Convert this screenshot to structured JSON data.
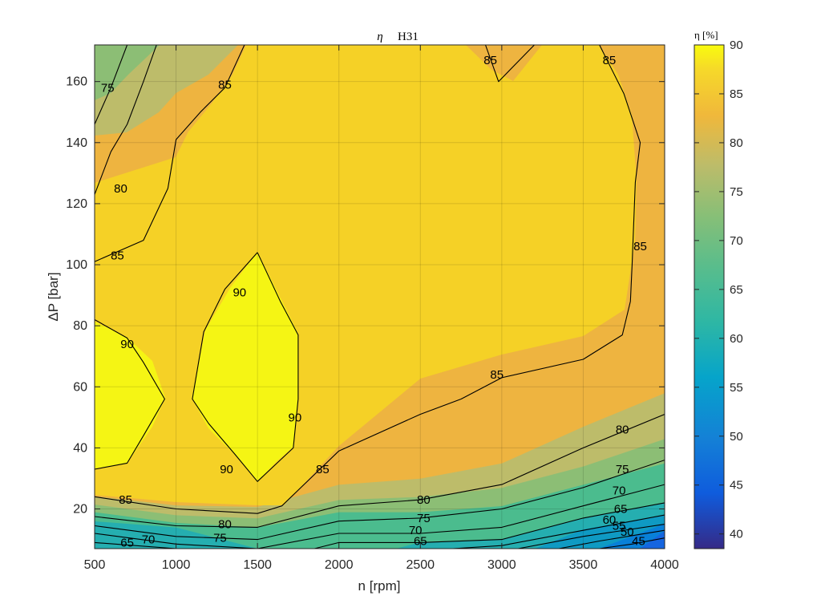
{
  "chart_data": {
    "type": "contour",
    "title": "H31",
    "title_symbol": "η",
    "xlabel": "n [rpm]",
    "ylabel": "ΔP [bar]",
    "xlim": [
      500,
      4000
    ],
    "ylim": [
      7,
      172
    ],
    "xticks": [
      500,
      1000,
      1500,
      2000,
      2500,
      3000,
      3500,
      4000
    ],
    "yticks": [
      20,
      40,
      60,
      80,
      100,
      120,
      140,
      160
    ],
    "grid": true,
    "colorbar": {
      "label": "η [%]",
      "range": [
        38.5,
        90
      ],
      "ticks": [
        40,
        45,
        50,
        55,
        60,
        65,
        70,
        75,
        80,
        85,
        90
      ],
      "colormap": "parula"
    },
    "levels": [
      45,
      50,
      55,
      60,
      65,
      70,
      75,
      80,
      85,
      90
    ],
    "contours": [
      {
        "level": 90,
        "points": [
          [
            500,
            82
          ],
          [
            700,
            76
          ],
          [
            800,
            68
          ],
          [
            930,
            56
          ],
          [
            800,
            44
          ],
          [
            700,
            35
          ],
          [
            500,
            33
          ]
        ]
      },
      {
        "level": 90,
        "points": [
          [
            1500,
            104
          ],
          [
            1640,
            88
          ],
          [
            1750,
            77
          ],
          [
            1750,
            56
          ],
          [
            1720,
            40
          ],
          [
            1620,
            35
          ],
          [
            1500,
            29
          ],
          [
            1360,
            38
          ],
          [
            1200,
            48
          ],
          [
            1100,
            56
          ],
          [
            1170,
            78
          ],
          [
            1300,
            92
          ],
          [
            1500,
            104
          ]
        ]
      },
      {
        "level": 85,
        "points": [
          [
            500,
            101
          ],
          [
            800,
            108
          ],
          [
            950,
            125
          ],
          [
            1000,
            141
          ],
          [
            1150,
            150
          ],
          [
            1300,
            158
          ],
          [
            1420,
            172
          ]
        ]
      },
      {
        "level": 85,
        "points": [
          [
            2900,
            172
          ],
          [
            2980,
            160
          ],
          [
            3200,
            172
          ]
        ]
      },
      {
        "level": 85,
        "points": [
          [
            3600,
            172
          ],
          [
            3750,
            156
          ],
          [
            3850,
            140
          ],
          [
            3820,
            127
          ],
          [
            3800,
            100
          ],
          [
            3790,
            88
          ],
          [
            3740,
            77
          ],
          [
            3500,
            69
          ],
          [
            3000,
            63
          ],
          [
            2750,
            56
          ],
          [
            2500,
            51
          ],
          [
            2000,
            39
          ],
          [
            1650,
            21
          ],
          [
            1500,
            18.5
          ],
          [
            1000,
            20
          ],
          [
            500,
            24
          ]
        ]
      },
      {
        "level": 80,
        "points": [
          [
            500,
            123
          ],
          [
            600,
            137
          ],
          [
            700,
            146
          ],
          [
            800,
            160
          ],
          [
            880,
            172
          ]
        ]
      },
      {
        "level": 80,
        "points": [
          [
            500,
            17.5
          ],
          [
            1000,
            14.5
          ],
          [
            1500,
            14
          ],
          [
            2000,
            21
          ],
          [
            2500,
            23
          ],
          [
            3000,
            28
          ],
          [
            3500,
            40
          ],
          [
            4000,
            51
          ]
        ]
      },
      {
        "level": 75,
        "points": [
          [
            500,
            146
          ],
          [
            600,
            158
          ],
          [
            700,
            172
          ]
        ]
      },
      {
        "level": 75,
        "points": [
          [
            500,
            14.5
          ],
          [
            1000,
            11
          ],
          [
            1500,
            10
          ],
          [
            2000,
            16
          ],
          [
            2500,
            17
          ],
          [
            3000,
            20
          ],
          [
            3500,
            27
          ],
          [
            4000,
            36
          ]
        ]
      },
      {
        "level": 70,
        "points": [
          [
            500,
            12
          ],
          [
            1000,
            8.5
          ],
          [
            1500,
            7
          ],
          [
            2000,
            12
          ],
          [
            2500,
            12
          ],
          [
            3000,
            14
          ],
          [
            3500,
            21
          ],
          [
            4000,
            28
          ]
        ]
      },
      {
        "level": 65,
        "points": [
          [
            500,
            9
          ],
          [
            1000,
            7
          ]
        ]
      },
      {
        "level": 65,
        "points": [
          [
            1850,
            7
          ],
          [
            2000,
            9
          ],
          [
            2500,
            9
          ],
          [
            3000,
            10
          ],
          [
            3500,
            17
          ],
          [
            4000,
            22
          ]
        ]
      },
      {
        "level": 60,
        "points": [
          [
            2700,
            7
          ],
          [
            3000,
            8
          ],
          [
            3500,
            13
          ],
          [
            4000,
            18
          ]
        ]
      },
      {
        "level": 55,
        "points": [
          [
            3100,
            7
          ],
          [
            3500,
            11
          ],
          [
            4000,
            15
          ]
        ]
      },
      {
        "level": 50,
        "points": [
          [
            3350,
            7
          ],
          [
            3600,
            9.5
          ],
          [
            4000,
            13
          ]
        ]
      },
      {
        "level": 45,
        "points": [
          [
            3600,
            7
          ],
          [
            3800,
            8.5
          ],
          [
            4000,
            10.5
          ]
        ]
      }
    ],
    "contour_labels": [
      {
        "text": "75",
        "at": [
          580,
          158
        ]
      },
      {
        "text": "80",
        "at": [
          660,
          125
        ]
      },
      {
        "text": "85",
        "at": [
          640,
          103
        ]
      },
      {
        "text": "85",
        "at": [
          1300,
          159
        ]
      },
      {
        "text": "90",
        "at": [
          700,
          74
        ]
      },
      {
        "text": "90",
        "at": [
          1390,
          91
        ]
      },
      {
        "text": "90",
        "at": [
          1730,
          50
        ]
      },
      {
        "text": "90",
        "at": [
          1310,
          33
        ]
      },
      {
        "text": "85",
        "at": [
          2930,
          167
        ]
      },
      {
        "text": "85",
        "at": [
          3660,
          167
        ]
      },
      {
        "text": "85",
        "at": [
          3850,
          106
        ]
      },
      {
        "text": "85",
        "at": [
          2970,
          64
        ]
      },
      {
        "text": "85",
        "at": [
          1900,
          33
        ]
      },
      {
        "text": "85",
        "at": [
          690,
          23
        ]
      },
      {
        "text": "80",
        "at": [
          3740,
          46
        ]
      },
      {
        "text": "80",
        "at": [
          2520,
          23
        ]
      },
      {
        "text": "80",
        "at": [
          1300,
          15
        ]
      },
      {
        "text": "75",
        "at": [
          3740,
          33
        ]
      },
      {
        "text": "75",
        "at": [
          2520,
          17
        ]
      },
      {
        "text": "75",
        "at": [
          1270,
          10.5
        ]
      },
      {
        "text": "70",
        "at": [
          3720,
          26
        ]
      },
      {
        "text": "70",
        "at": [
          2470,
          13
        ]
      },
      {
        "text": "70",
        "at": [
          830,
          10
        ]
      },
      {
        "text": "65",
        "at": [
          3730,
          20
        ]
      },
      {
        "text": "65",
        "at": [
          2500,
          9.5
        ]
      },
      {
        "text": "65",
        "at": [
          700,
          9
        ]
      },
      {
        "text": "60",
        "at": [
          3660,
          16.5
        ]
      },
      {
        "text": "55",
        "at": [
          3720,
          14.5
        ]
      },
      {
        "text": "50",
        "at": [
          3770,
          12.5
        ]
      },
      {
        "text": "45",
        "at": [
          3840,
          9.5
        ]
      }
    ]
  }
}
